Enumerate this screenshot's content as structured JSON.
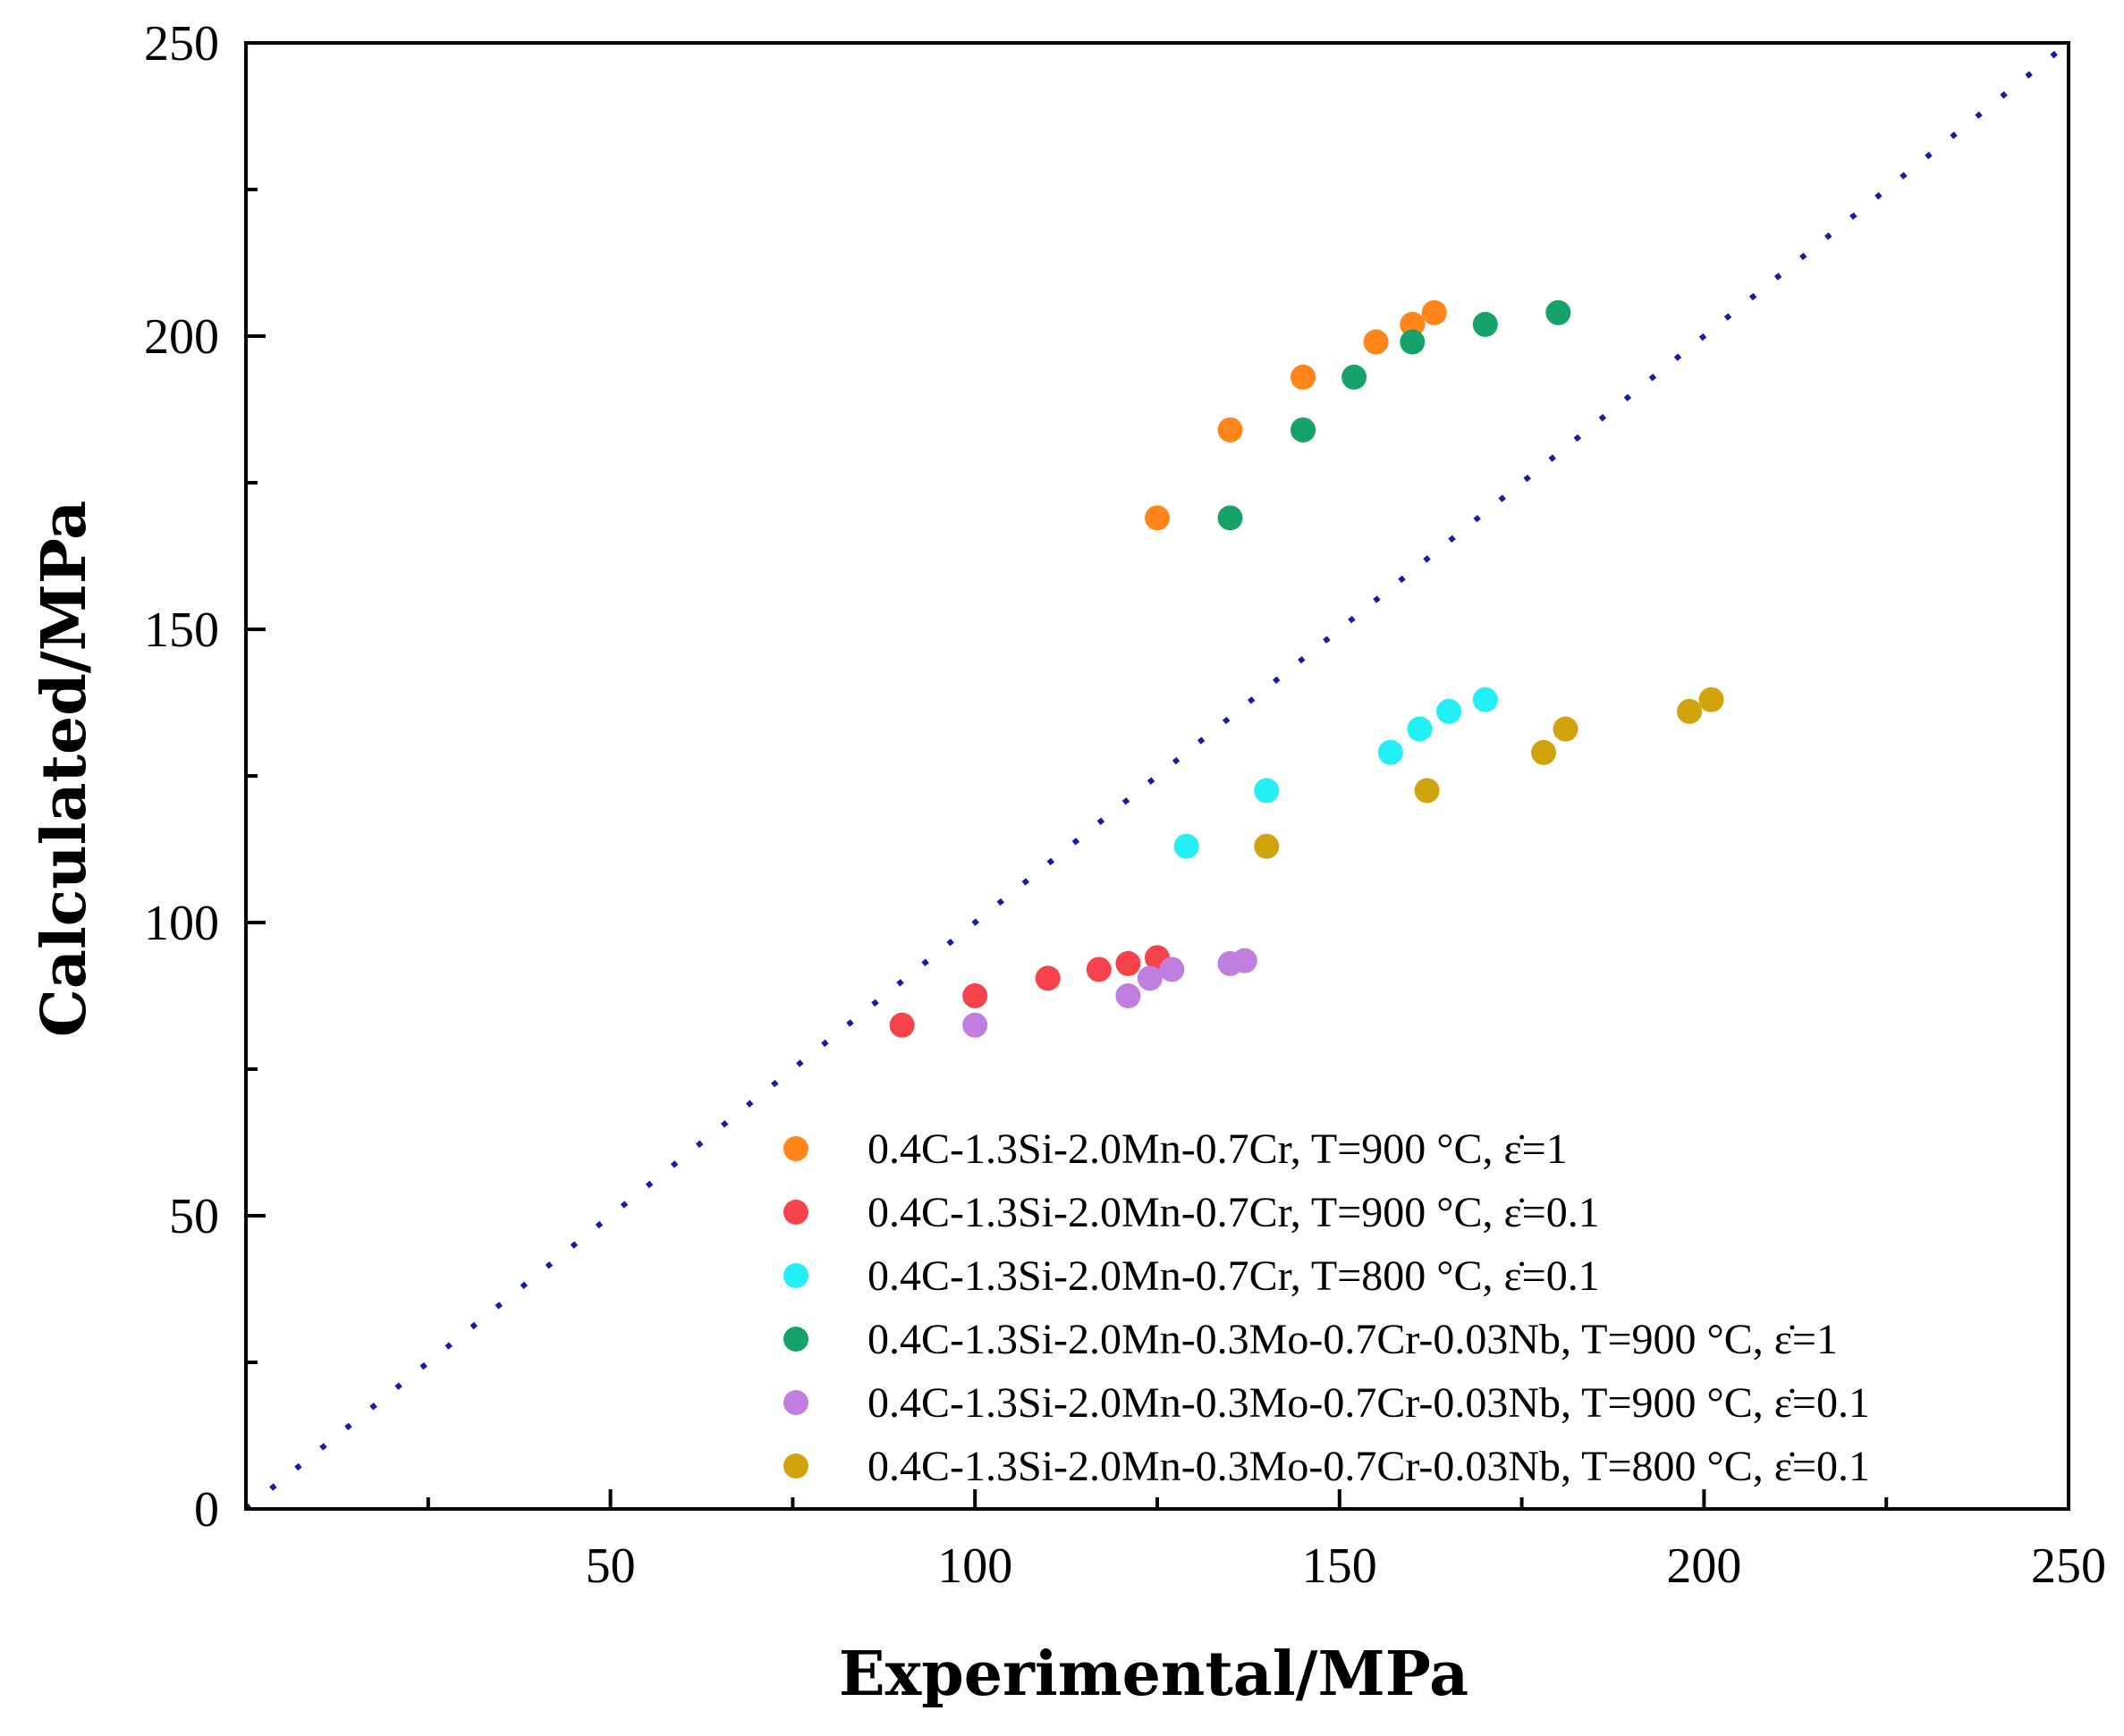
{
  "chart_data": {
    "type": "scatter",
    "title": "",
    "xlabel": "Experimental/MPa",
    "ylabel": "Calculated/MPa",
    "xlim": [
      0,
      250
    ],
    "ylim": [
      0,
      250
    ],
    "x_ticks": [
      50,
      100,
      150,
      200,
      250
    ],
    "y_ticks": [
      0,
      50,
      100,
      150,
      200,
      250
    ],
    "grid": false,
    "legend_position": "bottom-right",
    "reference_line": {
      "style": "dotted",
      "color": "#1a1aa6",
      "from": [
        0,
        0
      ],
      "to": [
        250,
        250
      ]
    },
    "series": [
      {
        "name": "0.4C-1.3Si-2.0Mn-0.7Cr, T=900 °C, ε̇=1",
        "color": "#ff8419",
        "points": [
          [
            125,
            169
          ],
          [
            135,
            184
          ],
          [
            145,
            193
          ],
          [
            155,
            199
          ],
          [
            160,
            202
          ],
          [
            163,
            204
          ]
        ]
      },
      {
        "name": "0.4C-1.3Si-2.0Mn-0.7Cr, T=900 °C, ε̇=0.1",
        "color": "#f5424b",
        "points": [
          [
            90,
            82.5
          ],
          [
            100,
            87.5
          ],
          [
            110,
            90.5
          ],
          [
            117,
            92
          ],
          [
            121,
            93
          ],
          [
            125,
            94
          ]
        ]
      },
      {
        "name": "0.4C-1.3Si-2.0Mn-0.7Cr, T=800 °C, ε̇=0.1",
        "color": "#22f0f5",
        "points": [
          [
            129,
            113
          ],
          [
            140,
            122.5
          ],
          [
            157,
            129
          ],
          [
            161,
            133
          ],
          [
            165,
            136
          ],
          [
            170,
            138
          ]
        ]
      },
      {
        "name": "0.4C-1.3Si-2.0Mn-0.3Mo-0.7Cr-0.03Nb, T=900 °C, ε̇=1",
        "color": "#15a36a",
        "points": [
          [
            135,
            169
          ],
          [
            145,
            184
          ],
          [
            152,
            193
          ],
          [
            160,
            199
          ],
          [
            170,
            202
          ],
          [
            180,
            204
          ]
        ]
      },
      {
        "name": "0.4C-1.3Si-2.0Mn-0.3Mo-0.7Cr-0.03Nb, T=900 °C, ε̇=0.1",
        "color": "#c07ee0",
        "points": [
          [
            100,
            82.5
          ],
          [
            121,
            87.5
          ],
          [
            124,
            90.5
          ],
          [
            127,
            92
          ],
          [
            135,
            93
          ],
          [
            137,
            93.5
          ]
        ]
      },
      {
        "name": "0.4C-1.3Si-2.0Mn-0.3Mo-0.7Cr-0.03Nb, T=800 °C, ε̇=0.1",
        "color": "#d1a30d",
        "points": [
          [
            140,
            113
          ],
          [
            162,
            122.5
          ],
          [
            178,
            129
          ],
          [
            181,
            133
          ],
          [
            198,
            136
          ],
          [
            201,
            138
          ]
        ]
      }
    ]
  }
}
